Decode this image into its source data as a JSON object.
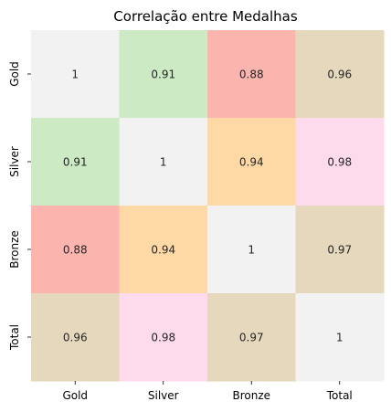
{
  "chart_data": {
    "type": "heatmap",
    "title": "Correlação entre Medalhas",
    "xlabel": "",
    "ylabel": "",
    "x_categories": [
      "Gold",
      "Silver",
      "Bronze",
      "Total"
    ],
    "y_categories": [
      "Gold",
      "Silver",
      "Bronze",
      "Total"
    ],
    "values": [
      [
        1,
        0.91,
        0.88,
        0.96
      ],
      [
        0.91,
        1,
        0.94,
        0.98
      ],
      [
        0.88,
        0.94,
        1,
        0.97
      ],
      [
        0.96,
        0.98,
        0.97,
        1
      ]
    ],
    "value_labels": [
      [
        "1",
        "0.91",
        "0.88",
        "0.96"
      ],
      [
        "0.91",
        "1",
        "0.94",
        "0.98"
      ],
      [
        "0.88",
        "0.94",
        "1",
        "0.97"
      ],
      [
        "0.96",
        "0.98",
        "0.97",
        "1"
      ]
    ],
    "colormap": "Pastel1",
    "cell_colors": {
      "1": "#f2f2f2",
      "0.98": "#fddaec",
      "0.97": "#e5d8bd",
      "0.96": "#e5d8bd",
      "0.94": "#fed9a6",
      "0.91": "#ccebc5",
      "0.88": "#fbb4ae"
    },
    "annotation_color": "#262626",
    "colorbar": false,
    "grid": false
  }
}
